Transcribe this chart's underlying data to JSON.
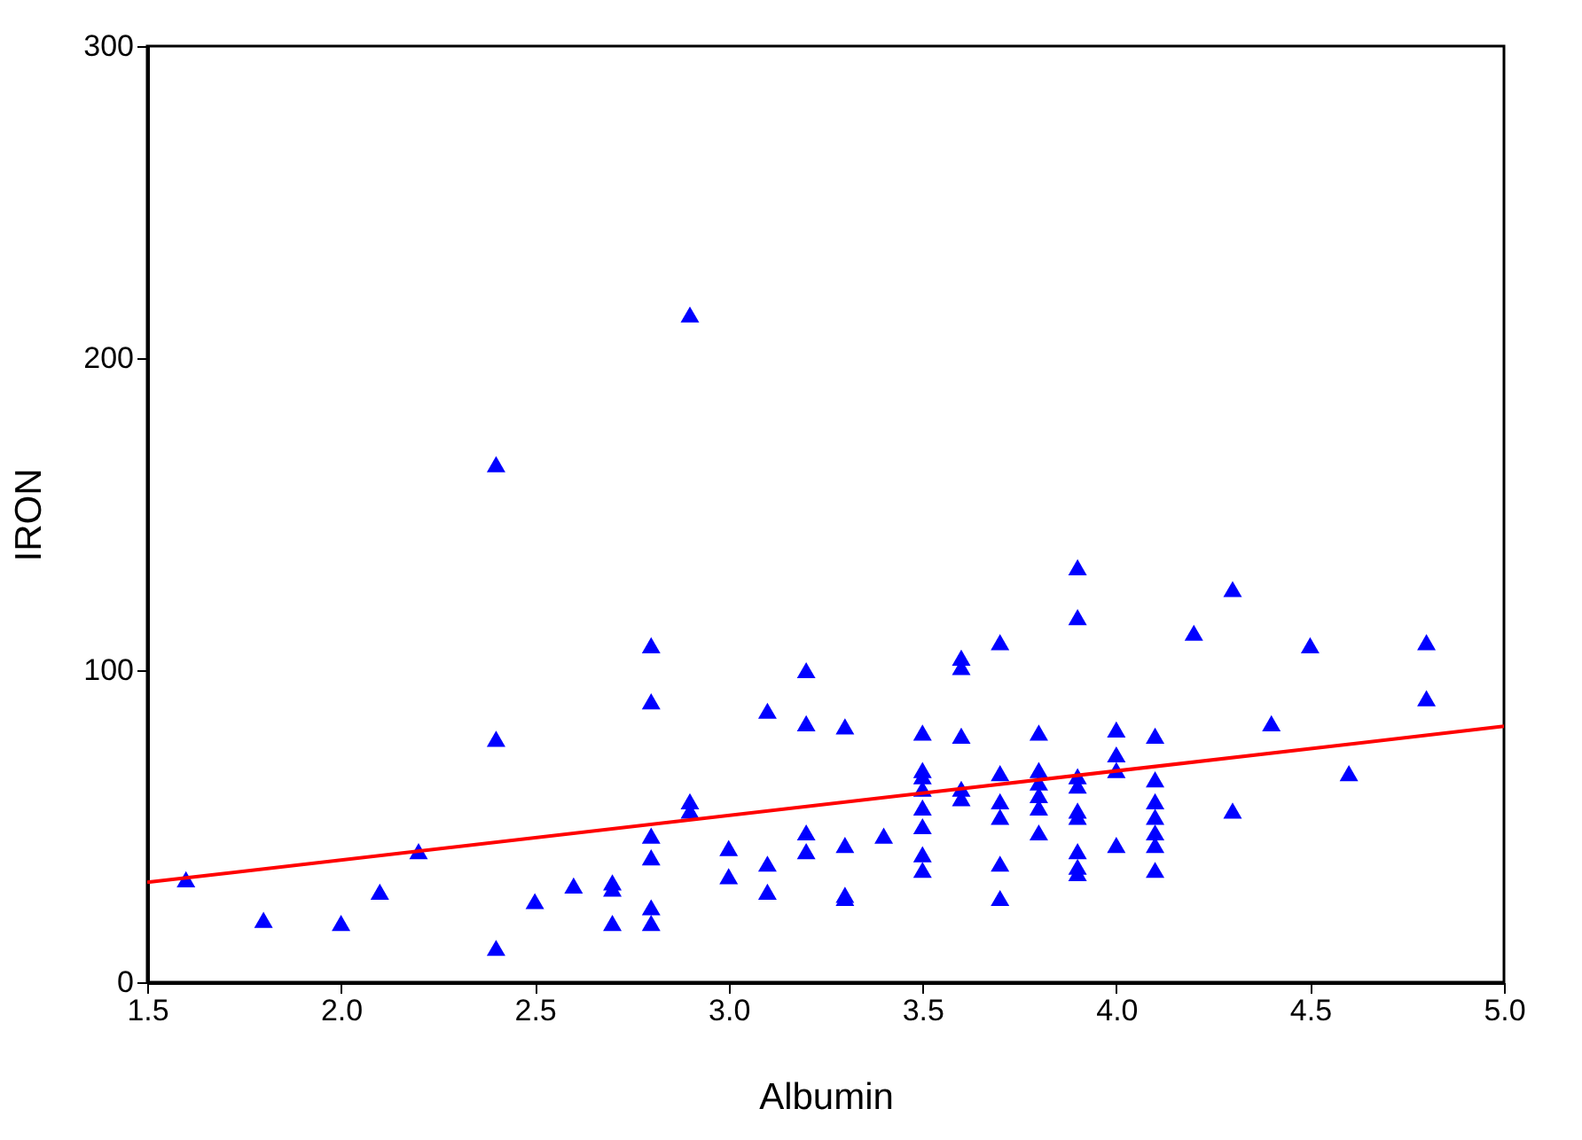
{
  "chart_data": {
    "type": "scatter",
    "xlabel": "Albumin",
    "ylabel": "IRON",
    "xlim": [
      1.5,
      5.0
    ],
    "ylim": [
      0,
      300
    ],
    "xticks": [
      {
        "value": 1.5,
        "label": "1.5"
      },
      {
        "value": 2,
        "label": "2.0"
      },
      {
        "value": 2.5,
        "label": "2.5"
      },
      {
        "value": 3,
        "label": "3.0"
      },
      {
        "value": 3.5,
        "label": "3.5"
      },
      {
        "value": 4,
        "label": "4.0"
      },
      {
        "value": 4.5,
        "label": "4.5"
      },
      {
        "value": 5,
        "label": "5.0"
      }
    ],
    "yticks": [
      0,
      100,
      200,
      300
    ],
    "grid": false,
    "marker": "triangle",
    "series": [
      {
        "color": "#0000ff",
        "x": [
          1.6,
          1.8,
          2.0,
          2.1,
          2.2,
          2.4,
          2.4,
          2.4,
          2.5,
          2.6,
          2.7,
          2.7,
          2.7,
          2.8,
          2.8,
          2.8,
          2.8,
          2.8,
          2.8,
          2.9,
          2.9,
          2.9,
          3.0,
          3.0,
          3.1,
          3.1,
          3.1,
          3.2,
          3.2,
          3.2,
          3.2,
          3.3,
          3.3,
          3.3,
          3.3,
          3.4,
          3.5,
          3.5,
          3.5,
          3.5,
          3.5,
          3.5,
          3.5,
          3.5,
          3.6,
          3.6,
          3.6,
          3.6,
          3.6,
          3.7,
          3.7,
          3.7,
          3.7,
          3.7,
          3.7,
          3.8,
          3.8,
          3.8,
          3.8,
          3.8,
          3.8,
          3.9,
          3.9,
          3.9,
          3.9,
          3.9,
          3.9,
          3.9,
          3.9,
          3.9,
          4.0,
          4.0,
          4.0,
          4.0,
          4.1,
          4.1,
          4.1,
          4.1,
          4.1,
          4.1,
          4.1,
          4.2,
          4.3,
          4.3,
          4.4,
          4.5,
          4.6,
          4.8,
          4.8
        ],
        "values": [
          33,
          20,
          19,
          29,
          42,
          166,
          78,
          11,
          26,
          31,
          32,
          30,
          19,
          108,
          90,
          47,
          40,
          24,
          19,
          214,
          58,
          55,
          43,
          34,
          87,
          38,
          29,
          100,
          83,
          48,
          42,
          82,
          44,
          28,
          27,
          47,
          80,
          68,
          66,
          62,
          56,
          50,
          41,
          36,
          104,
          101,
          79,
          62,
          59,
          109,
          67,
          58,
          53,
          38,
          27,
          80,
          68,
          64,
          60,
          56,
          48,
          133,
          117,
          66,
          63,
          55,
          53,
          42,
          37,
          35,
          81,
          73,
          68,
          44,
          79,
          65,
          58,
          53,
          48,
          44,
          36,
          112,
          126,
          55,
          83,
          108,
          67,
          109,
          91
        ]
      },
      {
        "type": "line",
        "color": "#ff0000",
        "marker": "none",
        "x": [
          1.5,
          5.0
        ],
        "values": [
          32,
          82
        ]
      }
    ]
  }
}
